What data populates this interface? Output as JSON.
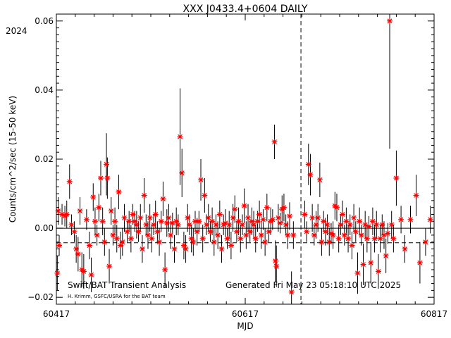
{
  "chart_data": {
    "type": "scatter",
    "title": "XXX J0433.4+0604 DAILY",
    "xlabel": "MJD",
    "ylabel": "Counts/cm^2/sec (15-50 keV)",
    "year_label": "2024",
    "xlim": [
      60417,
      60817
    ],
    "ylim": [
      -0.022,
      0.062
    ],
    "x_ticks": [
      60417,
      60617,
      60817
    ],
    "y_ticks": [
      -0.02,
      0.0,
      0.02,
      0.04,
      0.06
    ],
    "y_tick_labels": [
      "−0.02",
      "0.00",
      "0.02",
      "0.04",
      "0.06"
    ],
    "vline_mjd": 60676,
    "hline_dashed_y": -0.0042,
    "grid": false,
    "marker_color": "#ff0000",
    "series": [
      {
        "points": [
          [
            60418,
            -0.013,
            0.005
          ],
          [
            60419,
            0.005,
            0.004
          ],
          [
            60420,
            -0.005,
            0.003
          ],
          [
            60423,
            0.004,
            0.003
          ],
          [
            60426,
            0.0035,
            0.003
          ],
          [
            60428,
            0.004,
            0.004
          ],
          [
            60431,
            0.0135,
            0.005
          ],
          [
            60433,
            0.001,
            0.003
          ],
          [
            60436,
            -0.001,
            0.003
          ],
          [
            60438,
            -0.006,
            0.004
          ],
          [
            60440,
            -0.0075,
            0.005
          ],
          [
            60442,
            0.005,
            0.004
          ],
          [
            60444,
            -0.012,
            0.005
          ],
          [
            60446,
            -0.0125,
            0.005
          ],
          [
            60449,
            0.0025,
            0.003
          ],
          [
            60452,
            -0.005,
            0.004
          ],
          [
            60454,
            -0.0135,
            0.005
          ],
          [
            60456,
            0.009,
            0.004
          ],
          [
            60458,
            0.002,
            0.004
          ],
          [
            60460,
            -0.002,
            0.003
          ],
          [
            60462,
            0.006,
            0.004
          ],
          [
            60464,
            0.0145,
            0.005
          ],
          [
            60466,
            0.002,
            0.004
          ],
          [
            60468,
            -0.004,
            0.004
          ],
          [
            60470,
            0.0185,
            0.009
          ],
          [
            60471,
            0.0145,
            0.006
          ],
          [
            60473,
            -0.011,
            0.005
          ],
          [
            60475,
            0.005,
            0.004
          ],
          [
            60477,
            -0.002,
            0.003
          ],
          [
            60479,
            0.002,
            0.004
          ],
          [
            60481,
            -0.003,
            0.004
          ],
          [
            60483,
            0.0105,
            0.005
          ],
          [
            60485,
            -0.005,
            0.004
          ],
          [
            60487,
            -0.004,
            0.004
          ],
          [
            60489,
            0.003,
            0.004
          ],
          [
            60492,
            -0.001,
            0.003
          ],
          [
            60494,
            0.002,
            0.003
          ],
          [
            60496,
            -0.003,
            0.004
          ],
          [
            60498,
            0.004,
            0.003
          ],
          [
            60500,
            0.002,
            0.003
          ],
          [
            60502,
            0.001,
            0.004
          ],
          [
            60504,
            -0.001,
            0.003
          ],
          [
            60506,
            0.003,
            0.004
          ],
          [
            60508,
            -0.006,
            0.004
          ],
          [
            60510,
            0.0095,
            0.005
          ],
          [
            60512,
            0.001,
            0.003
          ],
          [
            60514,
            -0.002,
            0.004
          ],
          [
            60516,
            0.003,
            0.004
          ],
          [
            60518,
            -0.003,
            0.004
          ],
          [
            60520,
            0.001,
            0.003
          ],
          [
            60522,
            0.004,
            0.004
          ],
          [
            60524,
            -0.001,
            0.003
          ],
          [
            60526,
            -0.004,
            0.004
          ],
          [
            60528,
            0.002,
            0.003
          ],
          [
            60530,
            0.0085,
            0.005
          ],
          [
            60532,
            -0.012,
            0.005
          ],
          [
            60534,
            0.0015,
            0.004
          ],
          [
            60536,
            0.003,
            0.004
          ],
          [
            60538,
            -0.002,
            0.004
          ],
          [
            60540,
            0.0015,
            0.003
          ],
          [
            60542,
            -0.006,
            0.004
          ],
          [
            60544,
            0.002,
            0.004
          ],
          [
            60546,
            0.001,
            0.003
          ],
          [
            60548,
            0.0265,
            0.014
          ],
          [
            60550,
            0.016,
            0.007
          ],
          [
            60552,
            -0.005,
            0.004
          ],
          [
            60554,
            -0.006,
            0.004
          ],
          [
            60556,
            0.003,
            0.004
          ],
          [
            60558,
            0.001,
            0.003
          ],
          [
            60560,
            -0.003,
            0.004
          ],
          [
            60562,
            -0.004,
            0.004
          ],
          [
            60564,
            0.002,
            0.003
          ],
          [
            60566,
            -0.001,
            0.004
          ],
          [
            60568,
            0.002,
            0.003
          ],
          [
            60570,
            0.014,
            0.006
          ],
          [
            60572,
            -0.003,
            0.004
          ],
          [
            60574,
            0.0095,
            0.005
          ],
          [
            60576,
            0.001,
            0.003
          ],
          [
            60578,
            0.003,
            0.004
          ],
          [
            60580,
            -0.001,
            0.003
          ],
          [
            60582,
            0.002,
            0.004
          ],
          [
            60584,
            -0.004,
            0.004
          ],
          [
            60586,
            0.001,
            0.003
          ],
          [
            60588,
            -0.002,
            0.004
          ],
          [
            60590,
            0.004,
            0.004
          ],
          [
            60592,
            -0.006,
            0.004
          ],
          [
            60594,
            0.001,
            0.003
          ],
          [
            60596,
            0.0015,
            0.004
          ],
          [
            60598,
            -0.003,
            0.003
          ],
          [
            60600,
            0.001,
            0.004
          ],
          [
            60602,
            -0.005,
            0.004
          ],
          [
            60604,
            0.003,
            0.004
          ],
          [
            60606,
            0.0055,
            0.004
          ],
          [
            60608,
            -0.001,
            0.003
          ],
          [
            60610,
            0.002,
            0.004
          ],
          [
            60612,
            -0.003,
            0.004
          ],
          [
            60614,
            0.001,
            0.003
          ],
          [
            60616,
            0.0065,
            0.005
          ],
          [
            60618,
            -0.002,
            0.004
          ],
          [
            60620,
            0.003,
            0.004
          ],
          [
            60622,
            -0.001,
            0.003
          ],
          [
            60624,
            0.002,
            0.004
          ],
          [
            60626,
            0.001,
            0.004
          ],
          [
            60628,
            -0.003,
            0.004
          ],
          [
            60630,
            0.002,
            0.003
          ],
          [
            60632,
            0.004,
            0.004
          ],
          [
            60634,
            -0.002,
            0.004
          ],
          [
            60636,
            0.0025,
            0.003
          ],
          [
            60638,
            -0.004,
            0.004
          ],
          [
            60640,
            0.006,
            0.004
          ],
          [
            60642,
            -0.001,
            0.003
          ],
          [
            60644,
            0.002,
            0.004
          ],
          [
            60646,
            0.0025,
            0.003
          ],
          [
            60648,
            0.025,
            0.005
          ],
          [
            60649,
            -0.0095,
            0.006
          ],
          [
            60650,
            -0.011,
            0.006
          ],
          [
            60652,
            0.003,
            0.004
          ],
          [
            60654,
            0.0015,
            0.003
          ],
          [
            60656,
            0.0055,
            0.004
          ],
          [
            60658,
            0.006,
            0.004
          ],
          [
            60660,
            0.001,
            0.003
          ],
          [
            60662,
            -0.002,
            0.004
          ],
          [
            60664,
            0.0035,
            0.004
          ],
          [
            60666,
            -0.0185,
            0.006
          ],
          [
            60668,
            -0.002,
            0.004
          ],
          [
            60680,
            0.004,
            0.004
          ],
          [
            60682,
            -0.001,
            0.003
          ],
          [
            60684,
            0.0185,
            0.006
          ],
          [
            60686,
            0.0155,
            0.006
          ],
          [
            60688,
            0.003,
            0.004
          ],
          [
            60690,
            -0.002,
            0.003
          ],
          [
            60692,
            0.001,
            0.004
          ],
          [
            60694,
            0.003,
            0.004
          ],
          [
            60696,
            0.014,
            0.005
          ],
          [
            60698,
            -0.004,
            0.004
          ],
          [
            60700,
            0.002,
            0.003
          ],
          [
            60702,
            -0.001,
            0.004
          ],
          [
            60704,
            0.001,
            0.003
          ],
          [
            60706,
            -0.004,
            0.004
          ],
          [
            60708,
            -0.0015,
            0.003
          ],
          [
            60710,
            -0.002,
            0.004
          ],
          [
            60712,
            0.0065,
            0.004
          ],
          [
            60714,
            0.006,
            0.004
          ],
          [
            60716,
            -0.003,
            0.004
          ],
          [
            60718,
            0.001,
            0.003
          ],
          [
            60720,
            0.004,
            0.004
          ],
          [
            60722,
            -0.002,
            0.003
          ],
          [
            60724,
            0.002,
            0.004
          ],
          [
            60726,
            -0.003,
            0.004
          ],
          [
            60728,
            0.001,
            0.003
          ],
          [
            60730,
            -0.005,
            0.004
          ],
          [
            60732,
            0.003,
            0.004
          ],
          [
            60734,
            -0.001,
            0.003
          ],
          [
            60736,
            -0.013,
            0.006
          ],
          [
            60738,
            0.002,
            0.004
          ],
          [
            60740,
            -0.002,
            0.003
          ],
          [
            60742,
            -0.0105,
            0.006
          ],
          [
            60744,
            0.001,
            0.004
          ],
          [
            60746,
            -0.003,
            0.004
          ],
          [
            60748,
            0.0005,
            0.003
          ],
          [
            60750,
            -0.01,
            0.006
          ],
          [
            60752,
            0.002,
            0.004
          ],
          [
            60754,
            -0.003,
            0.004
          ],
          [
            60756,
            0.001,
            0.004
          ],
          [
            60758,
            -0.0125,
            0.005
          ],
          [
            60760,
            -0.003,
            0.004
          ],
          [
            60762,
            0.001,
            0.003
          ],
          [
            60764,
            -0.002,
            0.004
          ],
          [
            60766,
            -0.008,
            0.005
          ],
          [
            60768,
            -0.0015,
            0.003
          ],
          [
            60770,
            0.06,
            0.037
          ],
          [
            60772,
            0.001,
            0.004
          ],
          [
            60774,
            -0.003,
            0.004
          ],
          [
            60777,
            0.0145,
            0.008
          ],
          [
            60782,
            0.0025,
            0.004
          ],
          [
            60786,
            -0.006,
            0.004
          ],
          [
            60792,
            0.0025,
            0.004
          ],
          [
            60798,
            0.0095,
            0.006
          ],
          [
            60802,
            -0.01,
            0.006
          ],
          [
            60808,
            -0.004,
            0.004
          ],
          [
            60813,
            0.0025,
            0.004
          ]
        ]
      }
    ]
  },
  "footer": {
    "left": "Swift/BAT Transient Analysis",
    "right": "Generated Fri May 23 05:18:10 UTC 2025",
    "credit": "H. Krimm, GSFC/USRA for the BAT team"
  }
}
